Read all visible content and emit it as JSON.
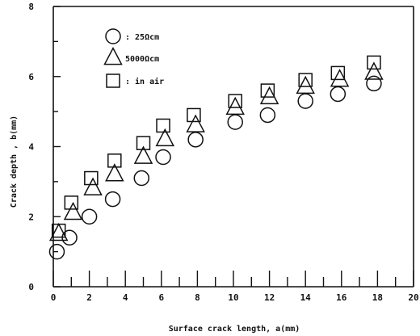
{
  "chart_data": {
    "type": "scatter",
    "title": "",
    "xlabel": "Surface crack length, a(mm)",
    "ylabel": "Crack depth , b(mm)",
    "xlim": [
      0,
      20
    ],
    "ylim": [
      0,
      8
    ],
    "xticks": [
      "0",
      "2",
      "4",
      "6",
      "8",
      "10",
      "12",
      "14",
      "16",
      "18",
      "20"
    ],
    "yticks": [
      "0",
      "2",
      "4",
      "6",
      "8"
    ],
    "grid": false,
    "legend_position": "top-left",
    "series": [
      {
        "name": ": 25Ωcm",
        "marker": "circle",
        "x": [
          0.2,
          0.9,
          2.0,
          3.3,
          4.9,
          6.1,
          7.9,
          10.1,
          11.9,
          14.0,
          15.8,
          17.8
        ],
        "y": [
          1.0,
          1.4,
          2.0,
          2.5,
          3.1,
          3.7,
          4.2,
          4.7,
          4.9,
          5.3,
          5.5,
          5.8
        ]
      },
      {
        "name": "5000Ωcm",
        "marker": "triangle",
        "x": [
          0.3,
          1.1,
          2.2,
          3.4,
          5.0,
          6.2,
          7.9,
          10.1,
          12.0,
          14.0,
          15.9,
          17.8
        ],
        "y": [
          1.5,
          2.1,
          2.8,
          3.2,
          3.7,
          4.2,
          4.6,
          5.1,
          5.4,
          5.7,
          5.9,
          6.1
        ]
      },
      {
        "name": ": in air",
        "marker": "square",
        "x": [
          0.3,
          1.0,
          2.1,
          3.4,
          5.0,
          6.1,
          7.8,
          10.1,
          11.9,
          14.0,
          15.8,
          17.8
        ],
        "y": [
          1.6,
          2.4,
          3.1,
          3.6,
          4.1,
          4.6,
          4.9,
          5.3,
          5.6,
          5.9,
          6.1,
          6.4
        ]
      }
    ]
  }
}
